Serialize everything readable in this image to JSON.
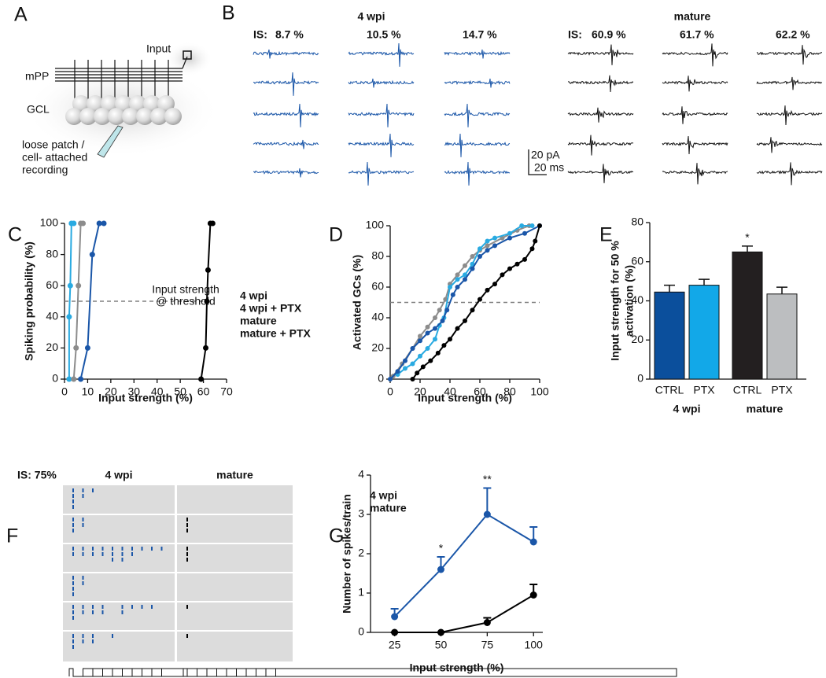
{
  "figure": {
    "panel_a": {
      "label": "A",
      "input": "Input",
      "mpp": "mPP",
      "gcl": "GCL",
      "recording": [
        "loose patch /",
        "cell- attached",
        "recording"
      ]
    },
    "panel_b": {
      "label": "B",
      "groups": [
        {
          "title": "4 wpi",
          "is_label": "IS:",
          "strengths": [
            "8.7 %",
            "10.5 %",
            "14.7 %"
          ]
        },
        {
          "title": "mature",
          "is_label": "IS:",
          "strengths": [
            "60.9 %",
            "61.7 %",
            "62.2 %"
          ]
        }
      ],
      "scale_y": "20 pA",
      "scale_x": "20 ms"
    }
  },
  "chart_data": [
    {
      "type": "line",
      "panel_label": "C",
      "xlabel": "Input strength (%)",
      "ylabel": "Spiking probability (%)",
      "xlim": [
        0,
        70
      ],
      "xticks": [
        0,
        10,
        20,
        30,
        40,
        50,
        60,
        70
      ],
      "ylim": [
        0,
        100
      ],
      "yticks": [
        0,
        20,
        40,
        60,
        80,
        100
      ],
      "threshold": 50,
      "annotation": [
        "Input strength",
        "@ threshold"
      ],
      "legend": "right",
      "series": [
        {
          "name": "4 wpi",
          "color": "#1a56a8",
          "x": [
            7,
            10,
            12,
            15,
            17
          ],
          "values": [
            0,
            20,
            80,
            100,
            100
          ]
        },
        {
          "name": "4 wpi + PTX",
          "color": "#29aae1",
          "x": [
            2,
            2,
            2.5,
            3,
            4
          ],
          "values": [
            0,
            40,
            60,
            100,
            100
          ]
        },
        {
          "name": "mature",
          "color": "#000000",
          "x": [
            59,
            61,
            61.5,
            62,
            63,
            64
          ],
          "values": [
            0,
            20,
            50,
            70,
            100,
            100
          ]
        },
        {
          "name": "mature + PTX",
          "color": "#8c8c8c",
          "x": [
            4,
            5,
            6,
            7,
            8
          ],
          "values": [
            0,
            20,
            60,
            100,
            100
          ]
        }
      ]
    },
    {
      "type": "line",
      "panel_label": "D",
      "xlabel": "Input strength (%)",
      "ylabel": "Activated GCs (%)",
      "xlim": [
        0,
        100
      ],
      "xticks": [
        0,
        20,
        40,
        60,
        80,
        100
      ],
      "ylim": [
        0,
        100
      ],
      "yticks": [
        0,
        20,
        40,
        60,
        80,
        100
      ],
      "threshold": 50,
      "series": [
        {
          "color": "#8c8c8c",
          "x": [
            2,
            8,
            15,
            20,
            25,
            30,
            33,
            37,
            40,
            45,
            50,
            55,
            60,
            65,
            75,
            85,
            93
          ],
          "values": [
            2,
            10,
            20,
            28,
            34,
            40,
            45,
            52,
            62,
            68,
            74,
            80,
            84,
            87,
            92,
            97,
            100
          ]
        },
        {
          "color": "#29aae1",
          "x": [
            5,
            10,
            15,
            20,
            25,
            30,
            33,
            36,
            40,
            45,
            50,
            55,
            60,
            65,
            70,
            80,
            88,
            95
          ],
          "values": [
            3,
            7,
            10,
            15,
            20,
            26,
            35,
            40,
            60,
            65,
            68,
            75,
            85,
            90,
            92,
            95,
            100,
            100
          ]
        },
        {
          "color": "#1a56a8",
          "x": [
            0,
            5,
            10,
            15,
            20,
            25,
            30,
            35,
            38,
            42,
            45,
            50,
            55,
            60,
            65,
            70,
            80,
            90,
            100
          ],
          "values": [
            0,
            5,
            12,
            20,
            25,
            30,
            33,
            38,
            45,
            55,
            60,
            65,
            72,
            80,
            84,
            87,
            92,
            95,
            100
          ]
        },
        {
          "color": "#000000",
          "x": [
            15,
            18,
            22,
            27,
            32,
            36,
            40,
            45,
            50,
            55,
            60,
            65,
            70,
            75,
            80,
            85,
            90,
            95,
            97,
            100
          ],
          "values": [
            0,
            4,
            8,
            12,
            17,
            22,
            26,
            33,
            38,
            45,
            52,
            58,
            62,
            68,
            72,
            75,
            78,
            85,
            90,
            100
          ]
        }
      ]
    },
    {
      "type": "bar",
      "panel_label": "E",
      "ylabel": [
        "Input strength for 50 %",
        "activation (%)"
      ],
      "ylim": [
        0,
        80
      ],
      "yticks": [
        0,
        20,
        40,
        60,
        80
      ],
      "categories": [
        "CTRL",
        "PTX",
        "CTRL",
        "PTX"
      ],
      "groups": [
        "4 wpi",
        "mature"
      ],
      "values": [
        44.5,
        48,
        65,
        43.5
      ],
      "errors": [
        3.5,
        3,
        3,
        3.5
      ],
      "colors": [
        "#0b4f9c",
        "#12a8e8",
        "#231f20",
        "#bcbec0"
      ],
      "significance": [
        null,
        null,
        "*",
        null
      ]
    },
    {
      "type": "raster",
      "panel_label": "F",
      "condition": "IS: 75%",
      "groups": [
        "4 wpi",
        "mature"
      ],
      "colors": [
        "#1a56a8",
        "#000000"
      ],
      "rows": [
        {
          "spikes": [
            [
              1,
              1,
              1,
              1,
              2,
              2,
              3
            ],
            []
          ]
        },
        {
          "spikes": [
            [
              1,
              1,
              1,
              2,
              2
            ],
            [
              1,
              1,
              1
            ]
          ]
        },
        {
          "spikes": [
            [
              1,
              1,
              2,
              2,
              3,
              3,
              4,
              4,
              5,
              5,
              5,
              6,
              6,
              6,
              7,
              7,
              8,
              9,
              10
            ],
            [
              1,
              1,
              1
            ]
          ]
        },
        {
          "spikes": [
            [
              1,
              1,
              1,
              1,
              2,
              2
            ],
            []
          ]
        },
        {
          "spikes": [
            [
              1,
              1,
              1,
              2,
              2,
              3,
              3,
              4,
              4,
              6,
              6,
              7,
              8,
              9
            ],
            [
              1
            ]
          ]
        },
        {
          "spikes": [
            [
              1,
              1,
              1,
              2,
              2,
              3,
              3,
              5
            ],
            [
              1
            ]
          ]
        }
      ]
    },
    {
      "type": "line",
      "panel_label": "G",
      "xlabel": "Input strength (%)",
      "ylabel": "Number of spikes/train",
      "xlim": [
        12,
        105
      ],
      "xticks": [
        25,
        50,
        75,
        100
      ],
      "ylim": [
        0,
        4
      ],
      "yticks": [
        0,
        1,
        2,
        3,
        4
      ],
      "legend": "upper left",
      "series": [
        {
          "name": "4 wpi",
          "color": "#1a56a8",
          "x": [
            25,
            50,
            75,
            100
          ],
          "values": [
            0.4,
            1.6,
            3.0,
            2.3
          ],
          "errors": [
            0.2,
            0.32,
            0.67,
            0.38
          ],
          "significance": [
            null,
            "*",
            "**",
            null
          ]
        },
        {
          "name": "mature",
          "color": "#000000",
          "x": [
            25,
            50,
            75,
            100
          ],
          "values": [
            0,
            0,
            0.25,
            0.95
          ],
          "errors": [
            0,
            0,
            0.12,
            0.27
          ]
        }
      ]
    }
  ]
}
